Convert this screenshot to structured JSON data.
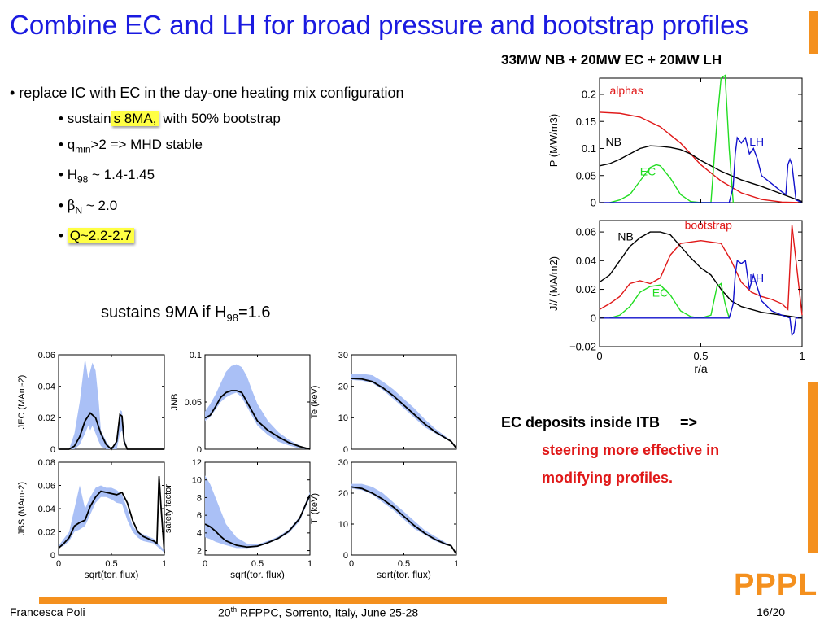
{
  "slide": {
    "title": "Combine EC and LH for broad pressure and bootstrap profiles",
    "config_label": "33MW NB + 20MW EC + 20MW LH",
    "bullet_main": "replace IC with EC in the day-one heating mix configuration",
    "sub_sustains_pre": "sustain",
    "sub_sustains_hl": "s  8MA,",
    "sub_sustains_post": " with 50% bootstrap",
    "sub_qmin": "q",
    "sub_qmin_sub": "min",
    "sub_qmin_post": ">2 => MHD stable",
    "sub_h98": "H",
    "sub_h98_sub": "98",
    "sub_h98_post": " ~ 1.4-1.45",
    "sub_beta": "β",
    "sub_beta_sub": "N",
    "sub_beta_post": " ~ 2.0",
    "sub_q": "Q~2.2-2.7",
    "sustains9_pre": "sustains 9MA if H",
    "sustains9_sub": "98",
    "sustains9_post": "=1.6",
    "ec_note_1": "EC deposits inside ITB     =>",
    "ec_note_2": "steering more effective in",
    "ec_note_3": "modifying profiles.",
    "footer_author": "Francesca Poli",
    "footer_conf_pre": "20",
    "footer_conf_sup": "th",
    "footer_conf_post": " RFPPC, Sorrento, Italy, June 25-28",
    "footer_page": "16/20",
    "logo": "PPPL"
  },
  "colors": {
    "title": "#1a1ae0",
    "accent": "#f4901e",
    "red": "#e01818",
    "ec": "#22dd22",
    "lh": "#1010cc",
    "band": "#aac0f6"
  },
  "chart_data": [
    {
      "id": "power",
      "type": "line",
      "ylabel": "P (MW/m3)",
      "ylim": [
        0,
        0.23
      ],
      "yticks": [
        0,
        0.05,
        0.1,
        0.15,
        0.2
      ],
      "xlim": [
        0,
        1
      ],
      "series": [
        {
          "name": "alphas",
          "color": "#e01818",
          "x": [
            0,
            0.1,
            0.2,
            0.3,
            0.4,
            0.5,
            0.6,
            0.7,
            0.8,
            0.9,
            1.0
          ],
          "y": [
            0.167,
            0.165,
            0.158,
            0.14,
            0.11,
            0.07,
            0.04,
            0.018,
            0.006,
            0.001,
            0
          ]
        },
        {
          "name": "NB",
          "color": "#000000",
          "x": [
            0,
            0.05,
            0.1,
            0.15,
            0.2,
            0.25,
            0.3,
            0.35,
            0.4,
            0.45,
            0.5,
            0.6,
            0.7,
            0.8,
            0.9,
            1.0
          ],
          "y": [
            0.068,
            0.072,
            0.08,
            0.09,
            0.1,
            0.105,
            0.104,
            0.102,
            0.098,
            0.09,
            0.078,
            0.058,
            0.042,
            0.03,
            0.016,
            0.002
          ]
        },
        {
          "name": "EC",
          "color": "#22dd22",
          "x": [
            0.05,
            0.1,
            0.15,
            0.2,
            0.25,
            0.28,
            0.3,
            0.35,
            0.4,
            0.45,
            0.5,
            0.55,
            0.58,
            0.6,
            0.62,
            0.64,
            0.66
          ],
          "y": [
            0,
            0.005,
            0.015,
            0.04,
            0.065,
            0.07,
            0.068,
            0.045,
            0.015,
            0.002,
            0,
            0,
            0.15,
            0.23,
            0.235,
            0.1,
            0
          ]
        },
        {
          "name": "LH",
          "color": "#1010cc",
          "x": [
            0,
            0.64,
            0.66,
            0.67,
            0.68,
            0.7,
            0.72,
            0.74,
            0.76,
            0.78,
            0.8,
            0.85,
            0.9,
            0.92,
            0.93,
            0.94,
            0.95,
            0.97,
            1.0
          ],
          "y": [
            0,
            0,
            0.03,
            0.09,
            0.12,
            0.11,
            0.12,
            0.09,
            0.1,
            0.08,
            0.05,
            0.035,
            0.02,
            0.015,
            0.07,
            0.08,
            0.07,
            0.005,
            0
          ]
        }
      ],
      "annotations": [
        {
          "text": "alphas",
          "color": "#e01818"
        },
        {
          "text": "NB",
          "color": "#000000"
        },
        {
          "text": "EC",
          "color": "#22dd22"
        },
        {
          "text": "LH",
          "color": "#1010cc"
        }
      ]
    },
    {
      "id": "current",
      "type": "line",
      "ylabel": "J// (MA/m2)",
      "xlabel": "r/a",
      "ylim": [
        -0.02,
        0.068
      ],
      "yticks": [
        -0.02,
        0,
        0.02,
        0.04,
        0.06
      ],
      "xlim": [
        0,
        1
      ],
      "xticks": [
        0,
        0.5,
        1
      ],
      "xticklabels": [
        "0",
        "0.5",
        "1"
      ],
      "series": [
        {
          "name": "bootstrap",
          "color": "#e01818",
          "x": [
            0,
            0.05,
            0.1,
            0.15,
            0.2,
            0.25,
            0.3,
            0.35,
            0.4,
            0.45,
            0.5,
            0.55,
            0.6,
            0.65,
            0.7,
            0.75,
            0.8,
            0.85,
            0.9,
            0.93,
            0.95,
            0.97,
            1.0
          ],
          "y": [
            0.006,
            0.01,
            0.015,
            0.024,
            0.026,
            0.024,
            0.028,
            0.044,
            0.052,
            0.053,
            0.054,
            0.053,
            0.052,
            0.04,
            0.025,
            0.018,
            0.015,
            0.013,
            0.01,
            0.006,
            0.065,
            0.04,
            0.002
          ]
        },
        {
          "name": "NB",
          "color": "#000000",
          "x": [
            0,
            0.05,
            0.1,
            0.15,
            0.2,
            0.25,
            0.3,
            0.35,
            0.4,
            0.45,
            0.5,
            0.55,
            0.6,
            0.65,
            0.7,
            0.8,
            0.9,
            1.0
          ],
          "y": [
            0.025,
            0.03,
            0.04,
            0.05,
            0.056,
            0.06,
            0.06,
            0.058,
            0.05,
            0.042,
            0.035,
            0.03,
            0.02,
            0.012,
            0.008,
            0.004,
            0.002,
            0
          ]
        },
        {
          "name": "EC",
          "color": "#22dd22",
          "x": [
            0.05,
            0.1,
            0.15,
            0.2,
            0.25,
            0.3,
            0.35,
            0.4,
            0.45,
            0.5,
            0.55,
            0.58,
            0.6,
            0.62,
            0.64
          ],
          "y": [
            0,
            0.002,
            0.008,
            0.018,
            0.022,
            0.023,
            0.016,
            0.005,
            0.001,
            0,
            0.002,
            0.022,
            0.024,
            0.01,
            0
          ]
        },
        {
          "name": "LH",
          "color": "#1010cc",
          "x": [
            0,
            0.64,
            0.66,
            0.67,
            0.68,
            0.7,
            0.72,
            0.74,
            0.76,
            0.8,
            0.85,
            0.9,
            0.94,
            0.95,
            0.96,
            0.97,
            1.0
          ],
          "y": [
            0,
            0,
            0.01,
            0.03,
            0.04,
            0.038,
            0.04,
            0.02,
            0.03,
            0.012,
            0.005,
            0.002,
            0,
            -0.012,
            -0.01,
            0,
            0
          ]
        }
      ],
      "annotations": [
        {
          "text": "bootstrap",
          "color": "#e01818"
        },
        {
          "text": "NB",
          "color": "#000000"
        },
        {
          "text": "EC",
          "color": "#22dd22"
        },
        {
          "text": "LH",
          "color": "#1010cc"
        }
      ]
    },
    {
      "id": "jec",
      "type": "line",
      "ylabel": "JEC (MAm-2)",
      "ylim": [
        0,
        0.06
      ],
      "yticks": [
        0,
        0.02,
        0.04,
        0.06
      ],
      "series": [
        {
          "name": "",
          "x": [
            0,
            0.1,
            0.15,
            0.2,
            0.25,
            0.3,
            0.35,
            0.4,
            0.45,
            0.5,
            0.55,
            0.58,
            0.6,
            0.62,
            0.65,
            1.0
          ],
          "y": [
            0,
            0,
            0.002,
            0.008,
            0.018,
            0.023,
            0.02,
            0.01,
            0.003,
            0,
            0.005,
            0.022,
            0.021,
            0.005,
            0,
            0
          ]
        }
      ],
      "band": {
        "x": [
          0,
          0.1,
          0.15,
          0.2,
          0.25,
          0.28,
          0.3,
          0.32,
          0.35,
          0.38,
          0.4,
          0.45,
          0.5,
          0.55,
          0.58,
          0.6,
          0.62,
          0.65,
          1.0
        ],
        "lo": [
          0,
          0,
          0,
          0.003,
          0.01,
          0.015,
          0.012,
          0.015,
          0.01,
          0.005,
          0.002,
          0,
          0,
          0,
          0.01,
          0.012,
          0.003,
          0,
          0
        ],
        "hi": [
          0,
          0,
          0.01,
          0.03,
          0.058,
          0.045,
          0.05,
          0.055,
          0.05,
          0.03,
          0.012,
          0.005,
          0,
          0.005,
          0.025,
          0.024,
          0.008,
          0,
          0
        ]
      }
    },
    {
      "id": "jnb",
      "type": "line",
      "ylabel": "JNB",
      "ylim": [
        0,
        0.1
      ],
      "yticks": [
        0,
        0.05,
        0.1
      ],
      "series": [
        {
          "name": "",
          "x": [
            0,
            0.05,
            0.1,
            0.15,
            0.2,
            0.25,
            0.3,
            0.35,
            0.4,
            0.45,
            0.5,
            0.6,
            0.7,
            0.8,
            0.9,
            1.0
          ],
          "y": [
            0.033,
            0.036,
            0.045,
            0.055,
            0.06,
            0.062,
            0.062,
            0.06,
            0.05,
            0.04,
            0.03,
            0.02,
            0.013,
            0.007,
            0.003,
            0
          ]
        }
      ],
      "band": {
        "x": [
          0,
          0.05,
          0.1,
          0.15,
          0.2,
          0.25,
          0.3,
          0.35,
          0.4,
          0.45,
          0.5,
          0.6,
          0.7,
          0.8,
          0.9,
          1.0
        ],
        "lo": [
          0.03,
          0.034,
          0.042,
          0.05,
          0.055,
          0.058,
          0.06,
          0.055,
          0.045,
          0.035,
          0.025,
          0.015,
          0.008,
          0.004,
          0.001,
          0
        ],
        "hi": [
          0.04,
          0.048,
          0.058,
          0.07,
          0.082,
          0.088,
          0.09,
          0.087,
          0.077,
          0.062,
          0.048,
          0.03,
          0.018,
          0.01,
          0.004,
          0
        ]
      }
    },
    {
      "id": "te",
      "type": "line",
      "ylabel": "Te (keV)",
      "ylim": [
        0,
        30
      ],
      "yticks": [
        0,
        10,
        20,
        30
      ],
      "series": [
        {
          "name": "",
          "x": [
            0,
            0.1,
            0.2,
            0.3,
            0.4,
            0.5,
            0.6,
            0.7,
            0.8,
            0.9,
            0.95,
            1.0
          ],
          "y": [
            22.5,
            22.3,
            21.5,
            19.5,
            17,
            14,
            11,
            8,
            5.5,
            3.5,
            2.5,
            0.3
          ]
        }
      ],
      "band": {
        "x": [
          0,
          0.1,
          0.2,
          0.3,
          0.4,
          0.5,
          0.6,
          0.7,
          0.8,
          0.9,
          0.95,
          1.0
        ],
        "lo": [
          22,
          21.8,
          21,
          18.8,
          16,
          13,
          10,
          7,
          5,
          3.2,
          2.3,
          0.2
        ],
        "hi": [
          24,
          24,
          23.5,
          21.5,
          19,
          16,
          13,
          9.5,
          6.5,
          4,
          2.8,
          0.5
        ]
      }
    },
    {
      "id": "jbs",
      "type": "line",
      "ylabel": "JBS (MAm-2)",
      "ylim": [
        0,
        0.08
      ],
      "yticks": [
        0,
        0.02,
        0.04,
        0.06,
        0.08
      ],
      "xticks": [
        0,
        0.5,
        1
      ],
      "xticklabels": [
        "0",
        "0.5",
        "1"
      ],
      "xlabel": "sqrt(tor. flux)",
      "series": [
        {
          "name": "",
          "x": [
            0,
            0.05,
            0.1,
            0.15,
            0.2,
            0.25,
            0.3,
            0.35,
            0.4,
            0.45,
            0.5,
            0.55,
            0.6,
            0.65,
            0.7,
            0.75,
            0.8,
            0.85,
            0.9,
            0.93,
            0.95,
            0.97,
            1.0
          ],
          "y": [
            0.006,
            0.01,
            0.015,
            0.025,
            0.028,
            0.03,
            0.042,
            0.05,
            0.055,
            0.054,
            0.053,
            0.052,
            0.054,
            0.045,
            0.03,
            0.02,
            0.016,
            0.014,
            0.012,
            0.01,
            0.068,
            0.04,
            0.002
          ]
        }
      ],
      "band": {
        "x": [
          0,
          0.05,
          0.1,
          0.15,
          0.2,
          0.25,
          0.3,
          0.35,
          0.4,
          0.45,
          0.5,
          0.55,
          0.6,
          0.65,
          0.7,
          0.75,
          0.8,
          0.85,
          0.9,
          1.0
        ],
        "lo": [
          0.006,
          0.008,
          0.012,
          0.02,
          0.022,
          0.025,
          0.035,
          0.045,
          0.05,
          0.05,
          0.048,
          0.045,
          0.044,
          0.03,
          0.02,
          0.015,
          0.012,
          0.011,
          0.01,
          0.002
        ],
        "hi": [
          0.008,
          0.014,
          0.02,
          0.04,
          0.06,
          0.04,
          0.05,
          0.058,
          0.06,
          0.058,
          0.058,
          0.056,
          0.052,
          0.04,
          0.025,
          0.02,
          0.018,
          0.016,
          0.014,
          0.004
        ]
      }
    },
    {
      "id": "q",
      "type": "line",
      "ylabel": "safety factor",
      "ylim": [
        1.5,
        12
      ],
      "yticks": [
        2,
        4,
        6,
        8,
        10,
        12
      ],
      "xticks": [
        0,
        0.5,
        1
      ],
      "xticklabels": [
        "0",
        "0.5",
        "1"
      ],
      "xlabel": "sqrt(tor. flux)",
      "series": [
        {
          "name": "",
          "x": [
            0,
            0.05,
            0.1,
            0.15,
            0.2,
            0.3,
            0.4,
            0.5,
            0.6,
            0.7,
            0.8,
            0.9,
            1.0
          ],
          "y": [
            5,
            4.7,
            4.2,
            3.6,
            3.1,
            2.6,
            2.4,
            2.5,
            2.9,
            3.4,
            4.2,
            5.6,
            8.3
          ]
        }
      ],
      "band": {
        "x": [
          0,
          0.05,
          0.1,
          0.15,
          0.2,
          0.3,
          0.4,
          0.5,
          0.6,
          0.7,
          0.8,
          0.9,
          1.0
        ],
        "lo": [
          3.5,
          3.3,
          3,
          2.8,
          2.6,
          2.3,
          2.3,
          2.4,
          2.8,
          3.3,
          4,
          5.3,
          8
        ],
        "hi": [
          10.5,
          9.5,
          8,
          6.5,
          5,
          3.5,
          2.8,
          2.7,
          3.1,
          3.6,
          4.4,
          5.8,
          8.6
        ]
      }
    },
    {
      "id": "ti",
      "type": "line",
      "ylabel": "Ti (keV)",
      "ylim": [
        0,
        30
      ],
      "yticks": [
        0,
        10,
        20,
        30
      ],
      "xticks": [
        0,
        0.5,
        1
      ],
      "xticklabels": [
        "0",
        "0.5",
        "1"
      ],
      "xlabel": "sqrt(tor. flux)",
      "series": [
        {
          "name": "",
          "x": [
            0,
            0.1,
            0.2,
            0.3,
            0.4,
            0.5,
            0.6,
            0.7,
            0.8,
            0.9,
            0.95,
            1.0
          ],
          "y": [
            22,
            21.5,
            20,
            18,
            15.5,
            12.5,
            9.5,
            7,
            5,
            3.5,
            3,
            0.3
          ]
        }
      ],
      "band": {
        "x": [
          0,
          0.1,
          0.2,
          0.3,
          0.4,
          0.5,
          0.6,
          0.7,
          0.8,
          0.9,
          0.95,
          1.0
        ],
        "lo": [
          21.5,
          21,
          19.5,
          17,
          14.5,
          11.5,
          8.5,
          6.5,
          4.5,
          3.2,
          2.8,
          0.2
        ],
        "hi": [
          23,
          23,
          22,
          20,
          17,
          14,
          11,
          8,
          6,
          4,
          3.3,
          0.5
        ]
      }
    }
  ]
}
